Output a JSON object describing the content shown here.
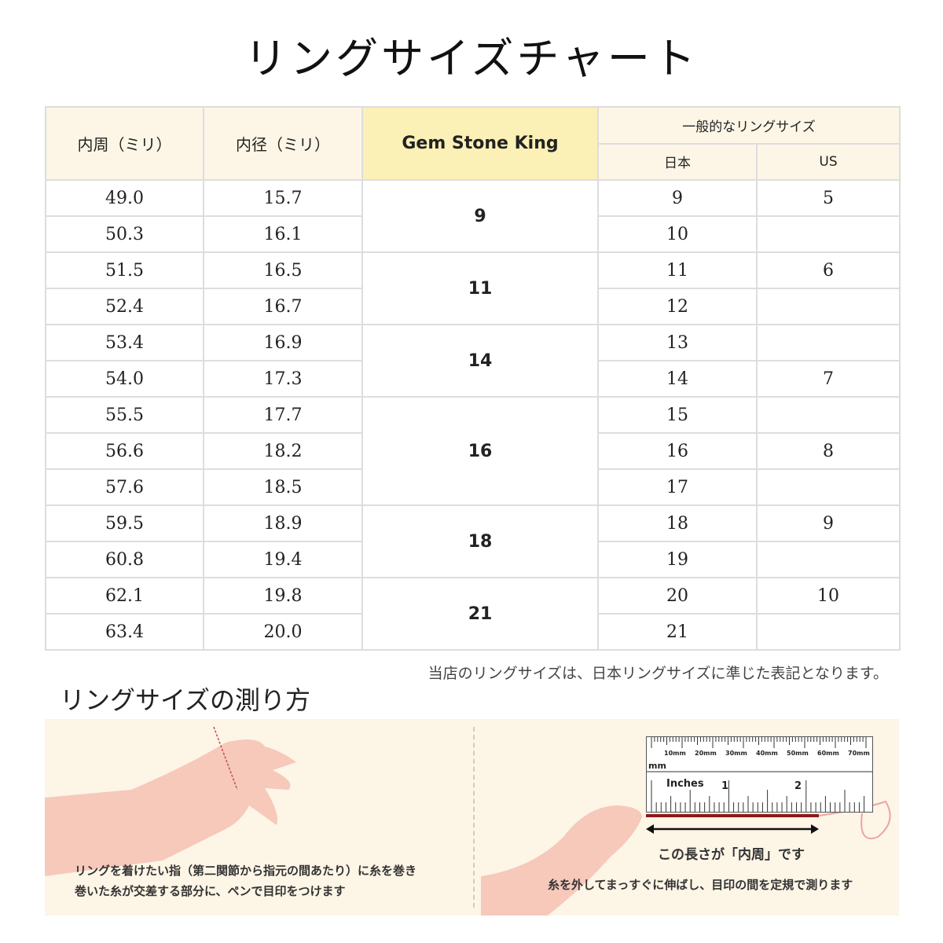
{
  "title": "リングサイズチャート",
  "table": {
    "headers": {
      "inner_circ": "内周（ミリ）",
      "inner_diam": "内径（ミリ）",
      "brand": "Gem Stone King",
      "general": "一般的なリングサイズ",
      "japan": "日本",
      "us": "US"
    },
    "rows": [
      {
        "circ": "49.0",
        "diam": "15.7",
        "jp": "9",
        "us": "5"
      },
      {
        "circ": "50.3",
        "diam": "16.1",
        "jp": "10",
        "us": ""
      },
      {
        "circ": "51.5",
        "diam": "16.5",
        "jp": "11",
        "us": "6"
      },
      {
        "circ": "52.4",
        "diam": "16.7",
        "jp": "12",
        "us": ""
      },
      {
        "circ": "53.4",
        "diam": "16.9",
        "jp": "13",
        "us": ""
      },
      {
        "circ": "54.0",
        "diam": "17.3",
        "jp": "14",
        "us": "7"
      },
      {
        "circ": "55.5",
        "diam": "17.7",
        "jp": "15",
        "us": ""
      },
      {
        "circ": "56.6",
        "diam": "18.2",
        "jp": "16",
        "us": "8"
      },
      {
        "circ": "57.6",
        "diam": "18.5",
        "jp": "17",
        "us": ""
      },
      {
        "circ": "59.5",
        "diam": "18.9",
        "jp": "18",
        "us": "9"
      },
      {
        "circ": "60.8",
        "diam": "19.4",
        "jp": "19",
        "us": ""
      },
      {
        "circ": "62.1",
        "diam": "19.8",
        "jp": "20",
        "us": "10"
      },
      {
        "circ": "63.4",
        "diam": "20.0",
        "jp": "21",
        "us": ""
      }
    ],
    "brand_sizes": [
      {
        "size": "9",
        "span": 2
      },
      {
        "size": "11",
        "span": 2
      },
      {
        "size": "14",
        "span": 2
      },
      {
        "size": "16",
        "span": 3
      },
      {
        "size": "18",
        "span": 2
      },
      {
        "size": "21",
        "span": 2
      }
    ]
  },
  "note": "当店のリングサイズは、日本リングサイズに準じた表記となります。",
  "howto": {
    "title": "リングサイズの測り方",
    "step1_line1": "リングを着けたい指（第二関節から指元の間あたり）に糸を巻き",
    "step1_line2": "巻いた糸が交差する部分に、ペンで目印をつけます",
    "length_label": "この長さが「内周」です",
    "step2": "糸を外してまっすぐに伸ばし、目印の間を定規で測ります",
    "ruler": {
      "mm_ticks": [
        "10mm",
        "20mm",
        "30mm",
        "40mm",
        "50mm",
        "60mm",
        "70mm"
      ],
      "mm_unit": "mm",
      "inch_unit": "Inches",
      "inch_ticks": [
        "1",
        "2"
      ]
    }
  },
  "colors": {
    "header_bg": "#fdf6e6",
    "brand_header_bg": "#fbf0b6",
    "panel_bg": "#fdf5e6",
    "skin": "#f6c9bb",
    "thread": "#8b1a1a"
  }
}
